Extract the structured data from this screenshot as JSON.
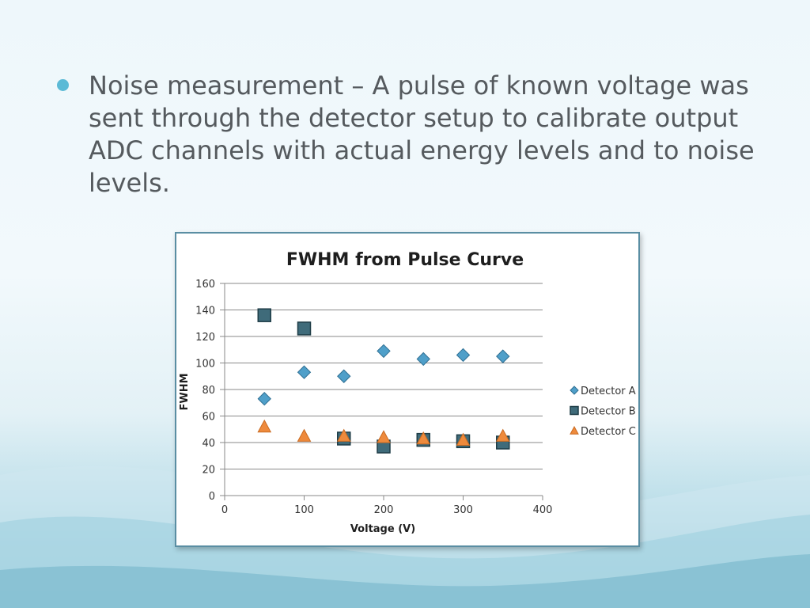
{
  "slide": {
    "bullet_text": "Noise measurement – A pulse of known voltage was sent through the detector setup to calibrate output ADC channels with actual energy levels and to noise levels.",
    "bullet_color": "#5bbad6"
  },
  "chart_data": {
    "type": "scatter",
    "title": "FWHM from Pulse Curve",
    "xlabel": "Voltage (V)",
    "ylabel": "FWHM",
    "xlim": [
      0,
      400
    ],
    "ylim": [
      0,
      160
    ],
    "x_ticks": [
      0,
      100,
      200,
      300,
      400
    ],
    "y_ticks": [
      0,
      20,
      40,
      60,
      80,
      100,
      120,
      140,
      160
    ],
    "grid": "horizontal",
    "legend_position": "right",
    "series": [
      {
        "name": "Detector A",
        "marker": "diamond",
        "color": "#4f9fc9",
        "x": [
          50,
          100,
          150,
          200,
          250,
          300,
          350
        ],
        "y": [
          73,
          93,
          90,
          109,
          103,
          106,
          105
        ]
      },
      {
        "name": "Detector B",
        "marker": "square",
        "color": "#3f6b7a",
        "x": [
          50,
          100,
          150,
          200,
          250,
          300,
          350
        ],
        "y": [
          136,
          126,
          43,
          37,
          42,
          41,
          40
        ]
      },
      {
        "name": "Detector C",
        "marker": "triangle",
        "color": "#ee8a3c",
        "x": [
          50,
          100,
          150,
          200,
          250,
          300,
          350
        ],
        "y": [
          52,
          45,
          45,
          44,
          43,
          42,
          45
        ]
      }
    ]
  }
}
